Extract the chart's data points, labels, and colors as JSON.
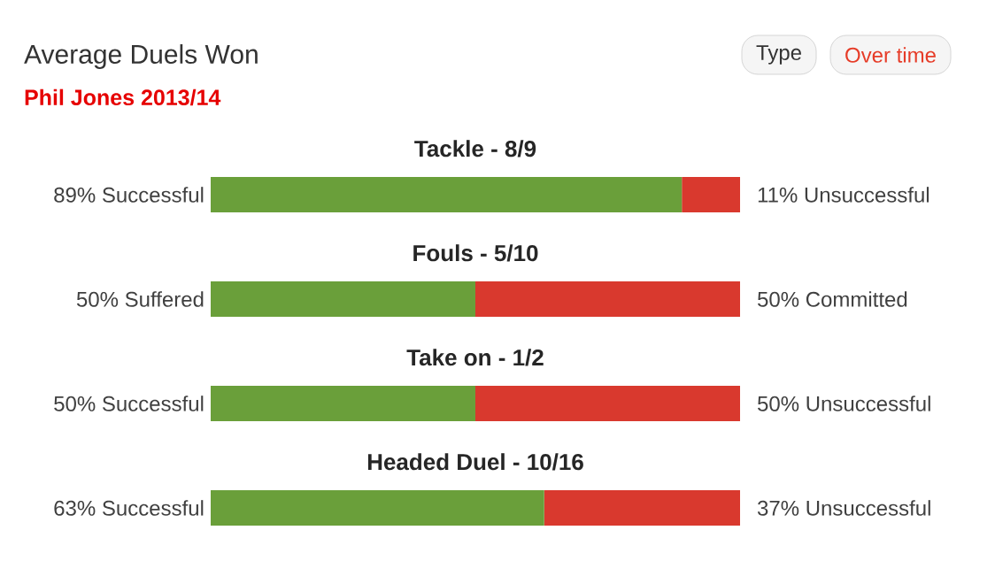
{
  "chart_data": {
    "type": "bar",
    "orientation": "horizontal",
    "stacked": true,
    "title": "Average Duels Won",
    "subtitle": "Phil Jones 2013/14",
    "annotations": [
      "Type",
      "Over time"
    ],
    "categories": [
      "Tackle - 8/9",
      "Fouls - 5/10",
      "Take on - 1/2",
      "Headed Duel - 10/16"
    ],
    "xlim": [
      0,
      100
    ],
    "tick_labels": false,
    "series": [
      {
        "color": "#6a9f3a",
        "values": [
          89,
          50,
          50,
          63
        ],
        "value_labels": [
          "89% Successful",
          "50% Suffered",
          "50% Successful",
          "63% Successful"
        ]
      },
      {
        "color": "#d9392e",
        "values": [
          11,
          50,
          50,
          37
        ],
        "value_labels": [
          "11% Unsuccessful",
          "50% Committed",
          "50% Unsuccessful",
          "37% Unsuccessful"
        ]
      }
    ]
  }
}
